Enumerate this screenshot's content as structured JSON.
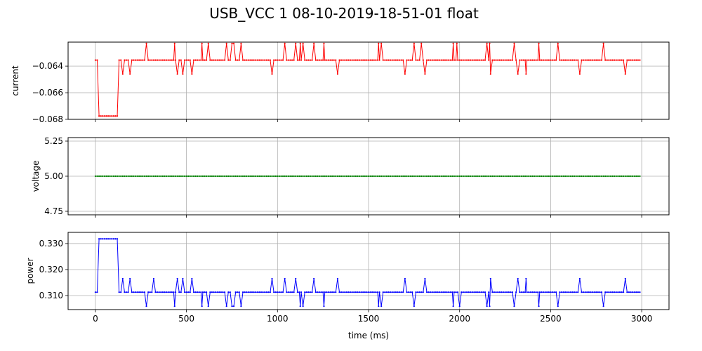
{
  "title": "USB_VCC   1   08-10-2019-18-51-01   float",
  "chart_data": [
    {
      "type": "line",
      "ylabel": "current",
      "color": "#ff0000",
      "xlim": [
        -150,
        3150
      ],
      "ylim": [
        -0.068,
        -0.0622
      ],
      "xticks": [
        0,
        500,
        1000,
        1500,
        2000,
        2500,
        3000
      ],
      "yticks": [
        -0.068,
        -0.066,
        -0.064
      ],
      "ytick_labels": [
        "−0.068",
        "−0.066",
        "−0.064"
      ],
      "grid": true,
      "baseline": -0.06355,
      "segments": [
        [
          0,
          15,
          -0.06355
        ],
        [
          20,
          120,
          -0.06775
        ],
        [
          130,
          2990,
          -0.06355
        ]
      ],
      "spikes_up": [
        280,
        435,
        585,
        620,
        720,
        750,
        760,
        800,
        970,
        1040,
        1100,
        1125,
        1140,
        1200,
        1255,
        1555,
        1570,
        1570,
        1750,
        1790,
        1965,
        1985,
        2150,
        2165,
        2300,
        2435,
        2540,
        2790
      ],
      "spikes_down": [
        150,
        190,
        450,
        480,
        530,
        970,
        1330,
        1700,
        1810,
        2170,
        2320,
        2365,
        2660,
        2910
      ],
      "spike_up_value": -0.0623,
      "spike_down_value": -0.0646
    },
    {
      "type": "line",
      "ylabel": "voltage",
      "color": "#008000",
      "xlim": [
        -150,
        3150
      ],
      "ylim": [
        4.725,
        5.275
      ],
      "xticks": [
        0,
        500,
        1000,
        1500,
        2000,
        2500,
        3000
      ],
      "yticks": [
        4.75,
        5.0,
        5.25
      ],
      "ytick_labels": [
        "4.75",
        "5.00",
        "5.25"
      ],
      "grid": true,
      "segments": [
        [
          0,
          2990,
          5.0
        ]
      ]
    },
    {
      "type": "line",
      "ylabel": "power",
      "xlabel": "time (ms)",
      "color": "#0000ff",
      "xlim": [
        -150,
        3150
      ],
      "ylim": [
        0.3046,
        0.3343
      ],
      "xticks": [
        0,
        500,
        1000,
        1500,
        2000,
        2500,
        3000
      ],
      "xtick_labels": [
        "0",
        "500",
        "1000",
        "1500",
        "2000",
        "2500",
        "3000"
      ],
      "yticks": [
        0.31,
        0.32,
        0.33
      ],
      "ytick_labels": [
        "0.310",
        "0.320",
        "0.330"
      ],
      "grid": true,
      "baseline": 0.3113,
      "segments": [
        [
          0,
          15,
          0.3113
        ],
        [
          20,
          120,
          0.3318
        ],
        [
          130,
          2990,
          0.3113
        ]
      ],
      "spikes_up": [
        150,
        190,
        320,
        450,
        480,
        530,
        970,
        1040,
        1100,
        1200,
        1330,
        1700,
        1810,
        2170,
        2320,
        2365,
        2660,
        2910
      ],
      "spikes_down": [
        280,
        435,
        585,
        620,
        720,
        750,
        760,
        800,
        1125,
        1140,
        1255,
        1555,
        1570,
        1750,
        1965,
        2000,
        2150,
        2165,
        2300,
        2435,
        2540,
        2790
      ],
      "spike_up_value": 0.3165,
      "spike_down_value": 0.3059
    }
  ]
}
